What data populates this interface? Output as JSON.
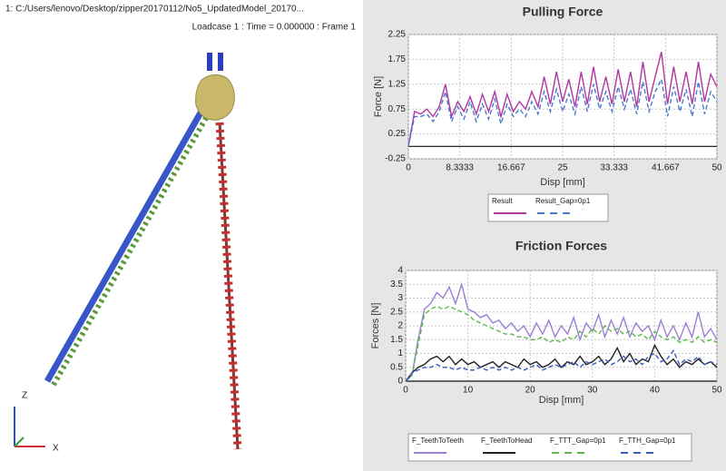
{
  "viewer": {
    "path": "1: C:/Users/lenovo/Desktop/zipper20170112/No5_UpdatedModel_20170...",
    "loadcase": "Loadcase 1 : Time = 0.000000 : Frame 1",
    "axis_z": "Z",
    "axis_x": "X"
  },
  "chart_data": [
    {
      "type": "line",
      "title": "Pulling Force",
      "x_label": "Disp [mm]",
      "y_label": "Force [N]",
      "x": [
        0,
        1,
        2,
        3,
        4,
        5,
        6,
        7,
        8,
        9,
        10,
        11,
        12,
        13,
        14,
        15,
        16,
        17,
        18,
        19,
        20,
        21,
        22,
        23,
        24,
        25,
        26,
        27,
        28,
        29,
        30,
        31,
        32,
        33,
        34,
        35,
        36,
        37,
        38,
        39,
        40,
        41,
        42,
        43,
        44,
        45,
        46,
        47,
        48,
        49,
        50
      ],
      "xlim": [
        0,
        50
      ],
      "xticks": [
        0,
        8.3333,
        16.667,
        25,
        33.333,
        41.667,
        50
      ],
      "ylim": [
        -0.25,
        2.25
      ],
      "yticks": [
        -0.25,
        0.25,
        0.75,
        1.25,
        1.75,
        2.25
      ],
      "grid": true,
      "series": [
        {
          "name": "Result",
          "color": "#b0379f",
          "style": "solid",
          "values": [
            0,
            0.7,
            0.65,
            0.75,
            0.6,
            0.8,
            1.25,
            0.6,
            0.9,
            0.7,
            1.0,
            0.65,
            1.05,
            0.7,
            1.1,
            0.6,
            1.05,
            0.7,
            0.9,
            0.75,
            1.1,
            0.8,
            1.4,
            0.85,
            1.5,
            0.9,
            1.35,
            0.8,
            1.5,
            0.85,
            1.6,
            0.9,
            1.4,
            0.85,
            1.55,
            0.9,
            1.5,
            0.8,
            1.7,
            0.9,
            1.4,
            1.9,
            0.85,
            1.6,
            0.9,
            1.5,
            0.85,
            1.7,
            0.9,
            1.45,
            1.2
          ]
        },
        {
          "name": "Result_Gap=0p1",
          "color": "#4a78d0",
          "style": "dashed",
          "values": [
            0,
            0.6,
            0.6,
            0.65,
            0.5,
            0.7,
            1.1,
            0.5,
            0.8,
            0.55,
            0.9,
            0.5,
            0.85,
            0.55,
            0.95,
            0.45,
            0.85,
            0.6,
            0.75,
            0.6,
            0.9,
            0.65,
            1.1,
            0.7,
            1.15,
            0.7,
            1.05,
            0.65,
            1.2,
            0.7,
            1.25,
            0.75,
            1.1,
            0.7,
            1.2,
            0.75,
            1.15,
            0.65,
            1.3,
            0.7,
            1.1,
            1.35,
            0.6,
            1.2,
            0.7,
            1.15,
            0.6,
            1.3,
            0.65,
            1.1,
            0.9
          ]
        }
      ]
    },
    {
      "type": "line",
      "title": "Friction Forces",
      "x_label": "Disp [mm]",
      "y_label": "Forces [N]",
      "x": [
        0,
        1,
        2,
        3,
        4,
        5,
        6,
        7,
        8,
        9,
        10,
        11,
        12,
        13,
        14,
        15,
        16,
        17,
        18,
        19,
        20,
        21,
        22,
        23,
        24,
        25,
        26,
        27,
        28,
        29,
        30,
        31,
        32,
        33,
        34,
        35,
        36,
        37,
        38,
        39,
        40,
        41,
        42,
        43,
        44,
        45,
        46,
        47,
        48,
        49,
        50
      ],
      "xlim": [
        0,
        50
      ],
      "xticks": [
        0,
        10,
        20,
        30,
        40,
        50
      ],
      "ylim": [
        0,
        4
      ],
      "yticks": [
        0,
        0.5,
        1,
        1.5,
        2,
        2.5,
        3,
        3.5,
        4
      ],
      "grid": true,
      "series": [
        {
          "name": "F_TeethToTeeth",
          "color": "#9b7fd4",
          "style": "solid",
          "values": [
            0,
            0.2,
            1.5,
            2.6,
            2.8,
            3.2,
            3.0,
            3.4,
            2.8,
            3.5,
            2.6,
            2.5,
            2.3,
            2.4,
            2.1,
            2.2,
            1.9,
            2.1,
            1.8,
            2.0,
            1.6,
            2.1,
            1.7,
            2.2,
            1.6,
            2.0,
            1.7,
            2.3,
            1.5,
            2.1,
            1.8,
            2.4,
            1.6,
            2.2,
            1.7,
            2.3,
            1.6,
            2.1,
            1.8,
            2.0,
            1.5,
            2.2,
            1.6,
            2.0,
            1.5,
            2.1,
            1.6,
            2.5,
            1.6,
            1.9,
            1.5
          ]
        },
        {
          "name": "F_TeethToHead",
          "color": "#222222",
          "style": "solid",
          "values": [
            0,
            0.3,
            0.5,
            0.6,
            0.8,
            0.9,
            0.7,
            0.9,
            0.6,
            0.8,
            0.6,
            0.7,
            0.5,
            0.6,
            0.7,
            0.5,
            0.7,
            0.6,
            0.5,
            0.8,
            0.6,
            0.7,
            0.5,
            0.6,
            0.8,
            0.5,
            0.7,
            0.6,
            0.9,
            0.6,
            0.7,
            0.9,
            0.6,
            0.8,
            1.2,
            0.7,
            1.0,
            0.6,
            0.8,
            0.7,
            1.3,
            0.9,
            0.6,
            0.8,
            0.5,
            0.7,
            0.6,
            0.8,
            0.6,
            0.7,
            0.5
          ]
        },
        {
          "name": "F_TTT_Gap=0p1",
          "color": "#5cb84a",
          "style": "dashed",
          "values": [
            0,
            0.2,
            1.3,
            2.4,
            2.6,
            2.7,
            2.6,
            2.7,
            2.6,
            2.5,
            2.4,
            2.2,
            2.1,
            2.0,
            1.9,
            1.8,
            1.7,
            1.7,
            1.6,
            1.6,
            1.5,
            1.5,
            1.6,
            1.4,
            1.5,
            1.4,
            1.6,
            1.5,
            1.8,
            1.6,
            1.9,
            1.7,
            2.0,
            1.8,
            1.9,
            1.7,
            1.8,
            1.6,
            1.7,
            1.5,
            1.8,
            1.6,
            1.5,
            1.6,
            1.4,
            1.5,
            1.4,
            1.6,
            1.4,
            1.5,
            1.4
          ]
        },
        {
          "name": "F_TTH_Gap=0p1",
          "color": "#3a5bc0",
          "style": "dashed",
          "values": [
            0,
            0.3,
            0.4,
            0.5,
            0.5,
            0.6,
            0.5,
            0.5,
            0.4,
            0.5,
            0.4,
            0.4,
            0.5,
            0.4,
            0.5,
            0.4,
            0.5,
            0.4,
            0.5,
            0.4,
            0.5,
            0.6,
            0.4,
            0.5,
            0.6,
            0.5,
            0.6,
            0.7,
            0.5,
            0.7,
            0.6,
            0.7,
            0.8,
            0.6,
            0.7,
            0.9,
            0.7,
            0.8,
            0.6,
            0.9,
            1.0,
            0.7,
            0.8,
            1.1,
            0.6,
            0.8,
            0.7,
            0.9,
            0.6,
            0.7,
            0.6
          ]
        }
      ]
    }
  ]
}
